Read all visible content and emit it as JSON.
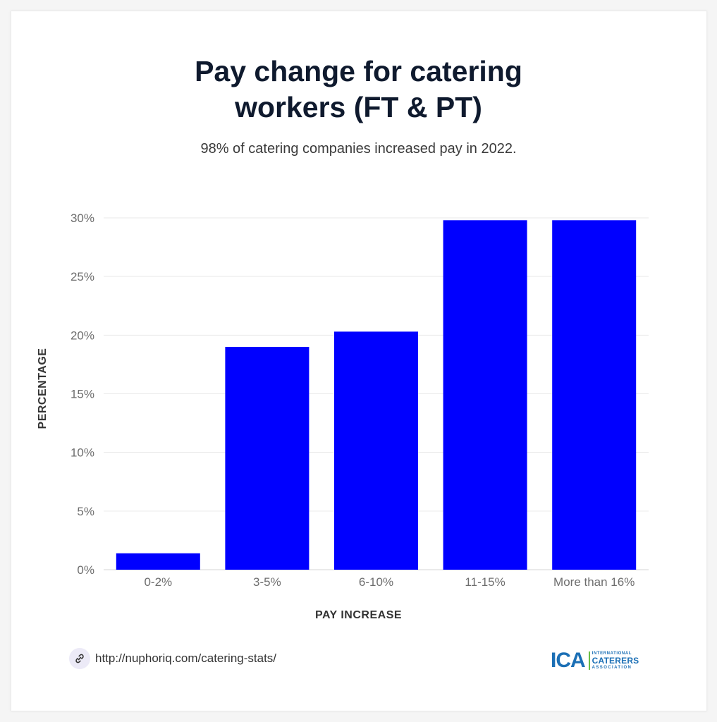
{
  "chart_data": {
    "type": "bar",
    "title": "Pay change for catering workers (FT & PT)",
    "subtitle": "98% of catering companies increased pay in 2022.",
    "xlabel": "PAY INCREASE",
    "ylabel": "PERCENTAGE",
    "categories": [
      "0-2%",
      "3-5%",
      "6-10%",
      "11-15%",
      "More than 16%"
    ],
    "values": [
      1.4,
      19.0,
      20.3,
      29.8,
      29.8
    ],
    "ylim": [
      0,
      30
    ],
    "yticks": [
      0,
      5,
      10,
      15,
      20,
      25,
      30
    ],
    "ytick_labels": [
      "0%",
      "5%",
      "10%",
      "15%",
      "20%",
      "25%",
      "30%"
    ],
    "grid": true,
    "bar_color": "#0000ff"
  },
  "footer": {
    "source_url": "http://nuphoriq.com/catering-stats/",
    "link_icon": "link-icon",
    "logo": {
      "mark": "ICA",
      "line1": "INTERNATIONAL",
      "line2": "CATERERS",
      "line3": "ASSOCIATION"
    }
  },
  "colors": {
    "bar": "#0000ff",
    "title": "#0f1a2e",
    "logo_blue": "#1b6fb5",
    "logo_green": "#6bbd45"
  }
}
